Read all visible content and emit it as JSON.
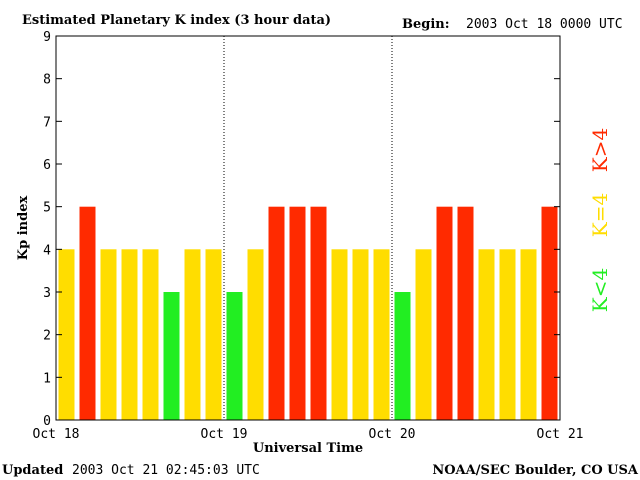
{
  "colors": {
    "low": "#22ee22",
    "mid": "#ffdd00",
    "high": "#ff2a00",
    "frame": "#000000"
  },
  "header": {
    "title": "Estimated Planetary K index (3 hour data)",
    "begin_label": "Begin:",
    "begin_value": "2003 Oct 18 0000 UTC"
  },
  "footer": {
    "updated_label": "Updated",
    "updated_value": "2003 Oct 21 02:45:03 UTC",
    "source": "NOAA/SEC Boulder, CO USA"
  },
  "legend": {
    "low": "K<4",
    "mid": "K=4",
    "high": "K>4"
  },
  "chart_data": {
    "type": "bar",
    "title": "Estimated Planetary K index (3 hour data)",
    "xlabel": "Universal Time",
    "ylabel": "Kp index",
    "ylim": [
      0,
      9
    ],
    "yticks": [
      0,
      1,
      2,
      3,
      4,
      5,
      6,
      7,
      8,
      9
    ],
    "xticks": [
      "Oct 18",
      "Oct 19",
      "Oct 20",
      "Oct 21"
    ],
    "day_separators": [
      "Oct 19",
      "Oct 20"
    ],
    "interval_hours": 3,
    "values": [
      4,
      5,
      4,
      4,
      4,
      3,
      4,
      4,
      3,
      4,
      5,
      5,
      5,
      4,
      4,
      4,
      3,
      4,
      5,
      5,
      4,
      4,
      4,
      5
    ]
  }
}
